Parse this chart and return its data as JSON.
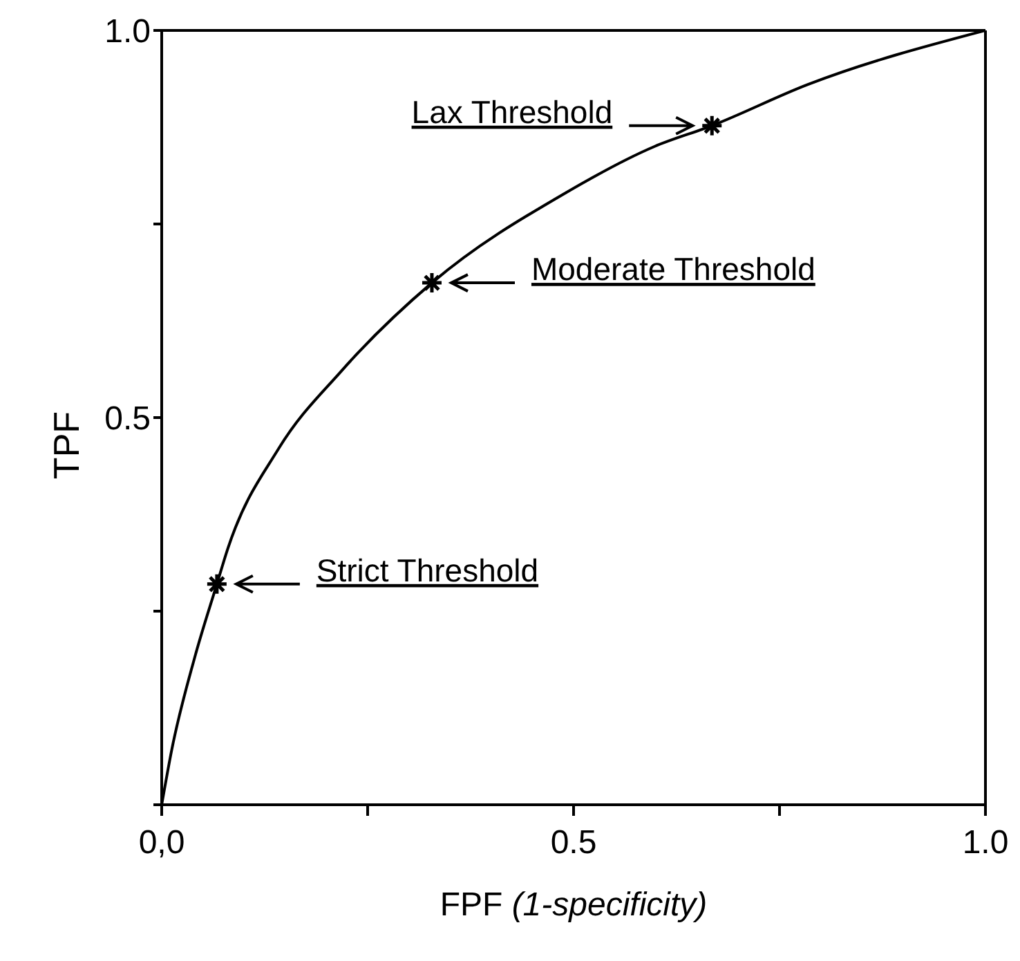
{
  "chart_data": {
    "type": "line",
    "xlabel": "FPF (1-specificity)",
    "ylabel": "TPF",
    "xlim": [
      0,
      1
    ],
    "ylim": [
      0,
      1
    ],
    "xticks": [
      {
        "value": 0,
        "label": "0,0"
      },
      {
        "value": 0.25,
        "label": null
      },
      {
        "value": 0.5,
        "label": "0.5"
      },
      {
        "value": 0.75,
        "label": null
      },
      {
        "value": 1,
        "label": "1.0"
      }
    ],
    "yticks": [
      {
        "value": 0,
        "label": null
      },
      {
        "value": 0.25,
        "label": null
      },
      {
        "value": 0.5,
        "label": "0.5"
      },
      {
        "value": 0.75,
        "label": null
      },
      {
        "value": 1,
        "label": "1.0"
      }
    ],
    "legend": false,
    "series": [
      {
        "color": "#000000",
        "marker": "none",
        "line_style": "solid",
        "x": [
          0,
          0.012,
          0.04,
          0.067,
          0.08,
          0.142,
          0.218,
          0.328,
          0.49,
          0.598,
          0.668,
          0.784,
          1
        ],
        "values": [
          0,
          0.07,
          0.19,
          0.285,
          0.33,
          0.46,
          0.56,
          0.674,
          0.79,
          0.85,
          0.877,
          0.93,
          1
        ]
      },
      {
        "type": "scatter",
        "color": "#000000",
        "marker": "cross",
        "x": [
          0.668,
          0.328,
          0.067
        ],
        "values": [
          0.877,
          0.674,
          0.285
        ]
      }
    ],
    "annotations": [
      "Lax Threshold",
      "Moderate Threshold",
      "Strict Threshold"
    ]
  }
}
